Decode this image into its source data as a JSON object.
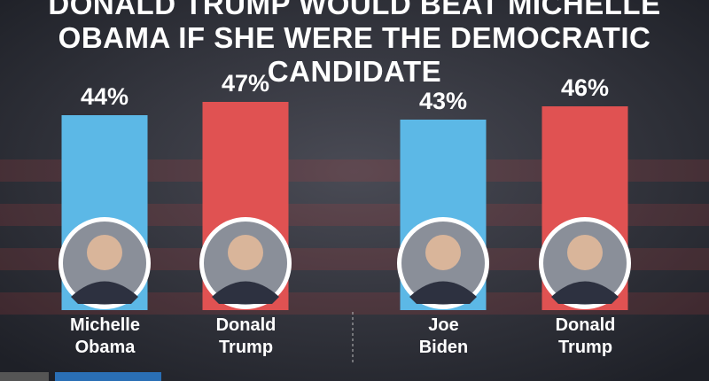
{
  "chart_data": {
    "type": "bar",
    "title": "DONALD TRUMP WOULD BEAT MICHELLE OBAMA IF SHE WERE THE DEMOCRATIC CANDIDATE",
    "categories": [
      "Michelle Obama",
      "Donald Trump",
      "Joe Biden",
      "Donald Trump"
    ],
    "values": [
      44,
      47,
      43,
      46
    ],
    "value_labels": [
      "44%",
      "47%",
      "43%",
      "46%"
    ],
    "colors": [
      "#5cb8e6",
      "#e05252",
      "#5cb8e6",
      "#e05252"
    ]
  }
}
